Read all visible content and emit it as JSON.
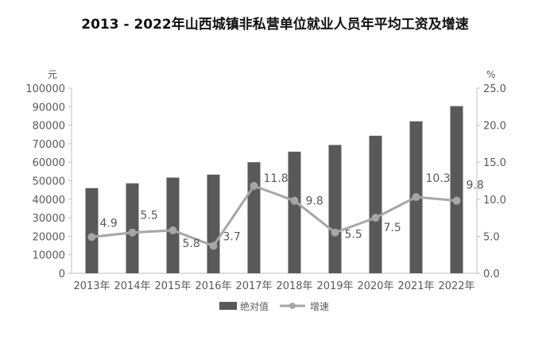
{
  "chart_data": {
    "type": "bar+line",
    "title": "2013 - 2022年山西城镇非私营单位就业人员年平均工资及增速",
    "categories": [
      "2013年",
      "2014年",
      "2015年",
      "2016年",
      "2017年",
      "2018年",
      "2019年",
      "2020年",
      "2021年",
      "2022年"
    ],
    "series": [
      {
        "name": "绝对值",
        "type": "bar",
        "axis": "left",
        "color": "#595959",
        "values": [
          46000,
          48600,
          51700,
          53300,
          60000,
          65700,
          69300,
          74300,
          82100,
          90300
        ]
      },
      {
        "name": "增速",
        "type": "line",
        "axis": "right",
        "color": "#a6a6a6",
        "values": [
          4.9,
          5.5,
          5.8,
          3.7,
          11.8,
          9.8,
          5.5,
          7.5,
          10.3,
          9.8
        ],
        "labels": [
          "4.9",
          "5.5",
          "5.8",
          "3.7",
          "11.8",
          "9.8",
          "5.5",
          "7.5",
          "10.3",
          "9.8"
        ]
      }
    ],
    "ylabel": "元",
    "y2label": "%",
    "ylim": [
      0,
      100000
    ],
    "y2lim": [
      0,
      25
    ],
    "yticks": [
      "0",
      "10000",
      "20000",
      "30000",
      "40000",
      "50000",
      "60000",
      "70000",
      "80000",
      "90000",
      "100000"
    ],
    "y2ticks": [
      "0.0",
      "5.0",
      "10.0",
      "15.0",
      "20.0",
      "25.0"
    ],
    "legend": "bottom"
  }
}
